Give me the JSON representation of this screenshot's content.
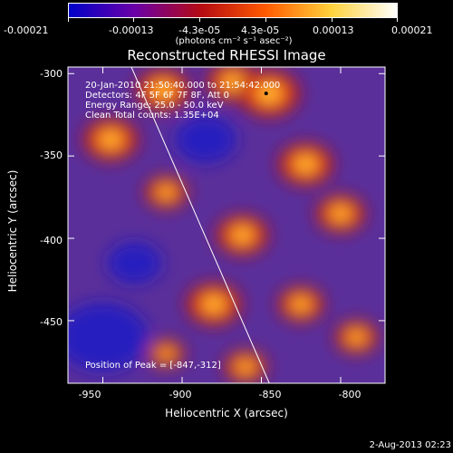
{
  "colorbar": {
    "ticks": [
      "-0.00021",
      "-0.00013",
      "-4.3e-05",
      "4.3e-05",
      "0.00013",
      "0.00021"
    ],
    "tick_values": [
      -0.00021,
      -0.00013,
      -4.3e-05,
      4.3e-05,
      0.00013,
      0.00021
    ],
    "range": [
      -0.00021,
      0.00021
    ],
    "units": "(photons cm⁻² s⁻¹ asec⁻²)",
    "colors": [
      "#0000c8",
      "#6a00a8",
      "#b40a14",
      "#ff5a00",
      "#ffd23c",
      "#ffffff"
    ]
  },
  "chart_data": {
    "type": "heatmap",
    "title": "Reconstructed RHESSI Image",
    "xlabel": "Heliocentric X (arcsec)",
    "ylabel": "Heliocentric Y (arcsec)",
    "xlim": [
      -972,
      -772
    ],
    "ylim": [
      -488,
      -296
    ],
    "x_ticks": [
      -950,
      -900,
      -850,
      -800
    ],
    "y_ticks": [
      -300,
      -350,
      -400,
      -450
    ],
    "annotations": [
      "20-Jan-2010 21:50:40.000 to 21:54:42.000",
      "Detectors: 4F 5F 6F 7F 8F, Att 0",
      "Energy Range: 25.0 - 50.0 keV",
      "Clean    Total counts: 1.35E+04"
    ],
    "peak_label": "Position of Peak = [-847,-312]",
    "peak_position": [
      -847,
      -312
    ],
    "limb_line": [
      [
        -932,
        -296
      ],
      [
        -845,
        -488
      ]
    ],
    "bright_regions": [
      {
        "x": -945,
        "y": -340,
        "level": 0.9
      },
      {
        "x": -912,
        "y": -310,
        "level": 0.9
      },
      {
        "x": -868,
        "y": -305,
        "level": 0.85
      },
      {
        "x": -845,
        "y": -312,
        "level": 1.0
      },
      {
        "x": -822,
        "y": -355,
        "level": 0.9
      },
      {
        "x": -910,
        "y": -372,
        "level": 0.7
      },
      {
        "x": -862,
        "y": -398,
        "level": 0.85
      },
      {
        "x": -800,
        "y": -385,
        "level": 0.8
      },
      {
        "x": -880,
        "y": -440,
        "level": 0.9
      },
      {
        "x": -825,
        "y": -440,
        "level": 0.75
      },
      {
        "x": -790,
        "y": -460,
        "level": 0.7
      },
      {
        "x": -910,
        "y": -470,
        "level": 0.6
      },
      {
        "x": -860,
        "y": -478,
        "level": 0.7
      }
    ],
    "dark_regions": [
      {
        "x": -950,
        "y": -460,
        "level": 1.0
      },
      {
        "x": -930,
        "y": -415,
        "level": 0.5
      },
      {
        "x": -885,
        "y": -340,
        "level": 0.6
      }
    ]
  },
  "footer": {
    "date": "2-Aug-2013 02:23"
  }
}
